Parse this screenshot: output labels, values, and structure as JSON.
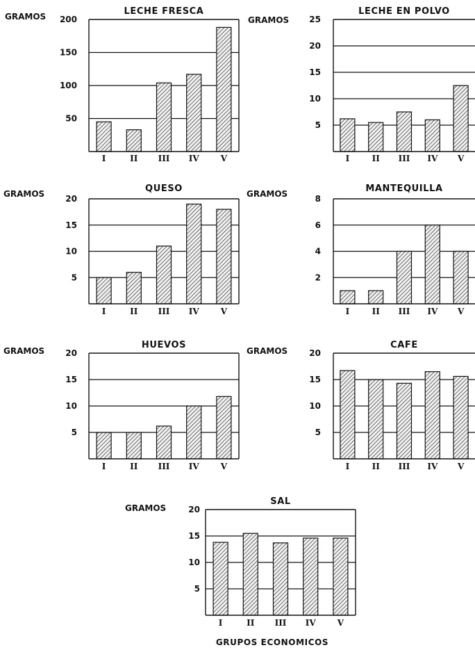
{
  "footer": "GRUPOS ECONOMICOS",
  "chart_data": [
    {
      "type": "bar",
      "title": "LECHE FRESCA",
      "ylabel": "GRAMOS",
      "categories": [
        "I",
        "II",
        "III",
        "IV",
        "V"
      ],
      "values": [
        45,
        33,
        104,
        117,
        188
      ],
      "ylim": [
        0,
        200
      ],
      "yticks": [
        "50",
        "100",
        "150",
        "200"
      ]
    },
    {
      "type": "bar",
      "title": "LECHE EN POLVO",
      "ylabel": "GRAMOS",
      "categories": [
        "I",
        "II",
        "III",
        "IV",
        "V"
      ],
      "values": [
        6.2,
        5.5,
        7.5,
        6.0,
        12.5
      ],
      "ylim": [
        0,
        25
      ],
      "yticks": [
        "5",
        "10",
        "15",
        "20",
        "25"
      ]
    },
    {
      "type": "bar",
      "title": "QUESO",
      "ylabel": "GRAMOS",
      "categories": [
        "I",
        "II",
        "III",
        "IV",
        "V"
      ],
      "values": [
        5,
        6,
        11,
        19,
        18
      ],
      "ylim": [
        0,
        20
      ],
      "yticks": [
        "5",
        "10",
        "15",
        "20"
      ]
    },
    {
      "type": "bar",
      "title": "MANTEQUILLA",
      "ylabel": "GRAMOS",
      "categories": [
        "I",
        "II",
        "III",
        "IV",
        "V"
      ],
      "values": [
        1,
        1,
        4,
        6,
        4
      ],
      "ylim": [
        0,
        8
      ],
      "yticks": [
        "2",
        "4",
        "6",
        "8"
      ]
    },
    {
      "type": "bar",
      "title": "HUEVOS",
      "ylabel": "GRAMOS",
      "categories": [
        "I",
        "II",
        "III",
        "IV",
        "V"
      ],
      "values": [
        5,
        5,
        6.2,
        10,
        11.8
      ],
      "ylim": [
        0,
        20
      ],
      "yticks": [
        "5",
        "10",
        "15",
        "20"
      ]
    },
    {
      "type": "bar",
      "title": "CAFE",
      "ylabel": "GRAMOS",
      "categories": [
        "I",
        "II",
        "III",
        "IV",
        "V"
      ],
      "values": [
        16.7,
        15,
        14.3,
        16.5,
        15.6
      ],
      "ylim": [
        0,
        20
      ],
      "yticks": [
        "5",
        "10",
        "15",
        "20"
      ]
    },
    {
      "type": "bar",
      "title": "SAL",
      "ylabel": "GRAMOS",
      "categories": [
        "I",
        "II",
        "III",
        "IV",
        "V"
      ],
      "values": [
        13.8,
        15.5,
        13.7,
        14.6,
        14.6
      ],
      "ylim": [
        0,
        20
      ],
      "yticks": [
        "5",
        "10",
        "15",
        "20"
      ]
    }
  ]
}
